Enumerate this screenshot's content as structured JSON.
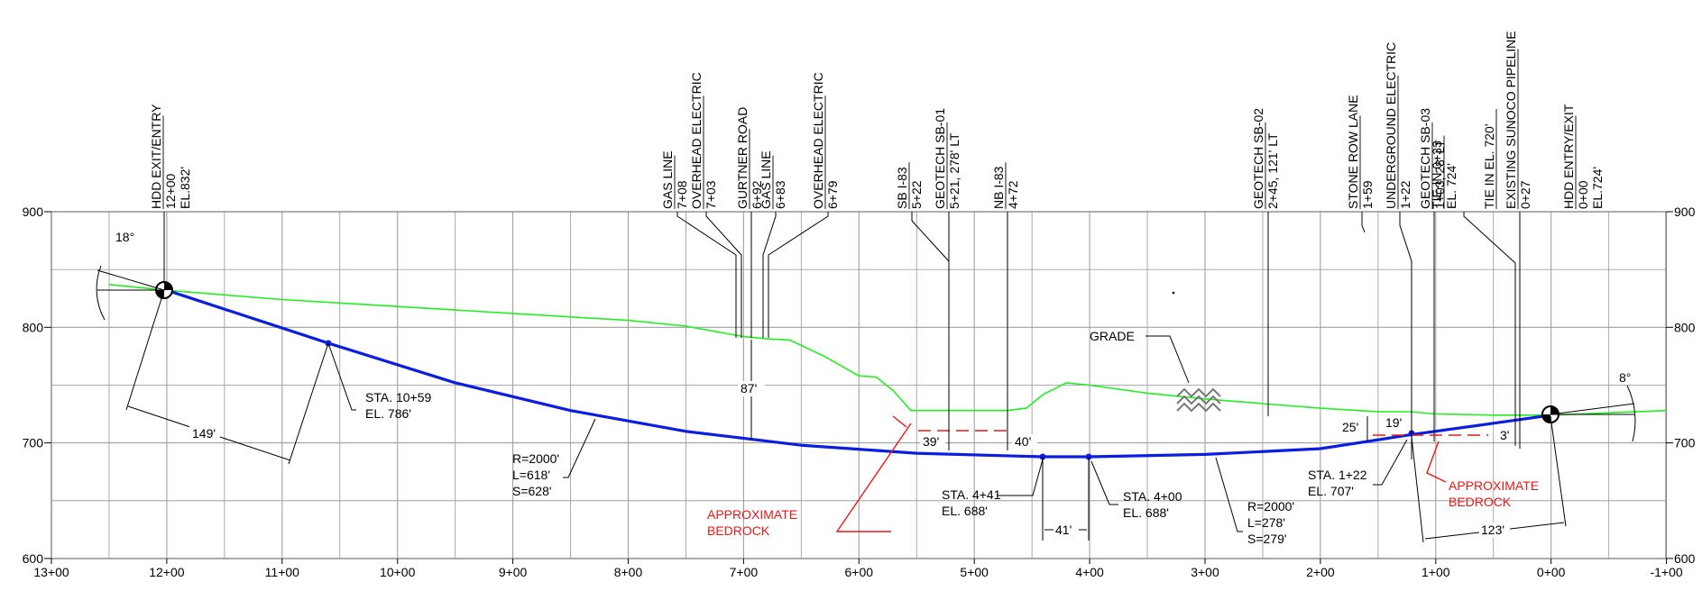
{
  "x_axis": {
    "tick_labels": [
      "13+00",
      "12+00",
      "11+00",
      "10+00",
      "9+00",
      "8+00",
      "7+00",
      "6+00",
      "5+00",
      "4+00",
      "3+00",
      "2+00",
      "1+00",
      "0+00",
      "-1+00"
    ]
  },
  "y_axis": {
    "tick_labels": [
      "900",
      "800",
      "700",
      "600"
    ]
  },
  "callouts": [
    {
      "lines": [
        "HDD EXIT/ENTRY",
        "12+00",
        "EL.832'"
      ]
    },
    {
      "lines": [
        "GAS LINE",
        "7+08"
      ]
    },
    {
      "lines": [
        "OVERHEAD ELECTRIC",
        "7+03"
      ]
    },
    {
      "lines": [
        "GURTNER ROAD",
        "6+92"
      ]
    },
    {
      "lines": [
        "GAS LINE",
        "6+83"
      ]
    },
    {
      "lines": [
        "OVERHEAD ELECTRIC",
        "6+79"
      ]
    },
    {
      "lines": [
        "SB I-83",
        "5+22"
      ]
    },
    {
      "lines": [
        "GEOTECH SB-01",
        "5+21, 278' LT"
      ]
    },
    {
      "lines": [
        "NB I-83",
        "4+72"
      ]
    },
    {
      "lines": [
        "GEOTECH SB-02",
        "2+45, 121' LT"
      ]
    },
    {
      "lines": [
        "STONE ROW LANE",
        "1+59"
      ]
    },
    {
      "lines": [
        "UNDERGROUND ELECTRIC",
        "1+22"
      ]
    },
    {
      "lines": [
        "GEOTECH SB-03",
        "1+03, 28' LT"
      ]
    },
    {
      "lines": [
        "TIE-IN 0+33",
        "EL. 724'"
      ]
    },
    {
      "lines": [
        "TIE IN EL. 720'"
      ]
    },
    {
      "lines": [
        "EXISTING SUNOCO PIPELINE",
        "0+27"
      ]
    },
    {
      "lines": [
        "HDD ENTRY/EXIT",
        "0+00",
        "EL.724'"
      ]
    }
  ],
  "annotations": {
    "angle_left": "18°",
    "angle_right": "8°",
    "dim_149": "149'",
    "sta_1059": [
      "STA. 10+59",
      "EL. 786'"
    ],
    "curve_left": [
      "R=2000'",
      "L=618'",
      "S=628'"
    ],
    "cover_87": "87'",
    "dim_39": "39'",
    "dim_40": "40'",
    "dim_41": "41'",
    "sta_441": [
      "STA. 4+41",
      "EL. 688'"
    ],
    "sta_400": [
      "STA. 4+00",
      "EL. 688'"
    ],
    "curve_right": [
      "R=2000'",
      "L=278'",
      "S=279'"
    ],
    "grade_label": "GRADE",
    "dim_25": "25'",
    "dim_19": "19'",
    "dim_3": "3'",
    "dim_123": "123'",
    "sta_122": [
      "STA. 1+22",
      "EL. 707'"
    ],
    "bedrock_left": [
      "APPROXIMATE",
      "BEDROCK"
    ],
    "bedrock_right": [
      "APPROXIMATE",
      "BEDROCK"
    ]
  },
  "colors": {
    "bore_path": "#0b1ee0",
    "ground": "#22ee22",
    "bedrock": "#e31a1a",
    "grid": "#a0a0a0"
  },
  "profile": {
    "ground": [
      [
        12.5,
        837
      ],
      [
        12.0,
        832
      ],
      [
        11.0,
        824
      ],
      [
        10.0,
        818
      ],
      [
        9.0,
        812
      ],
      [
        8.0,
        806
      ],
      [
        7.5,
        801
      ],
      [
        7.0,
        792
      ],
      [
        6.8,
        790
      ],
      [
        6.6,
        789
      ],
      [
        6.3,
        775
      ],
      [
        6.0,
        758
      ],
      [
        5.85,
        757
      ],
      [
        5.7,
        745
      ],
      [
        5.55,
        728
      ],
      [
        5.2,
        728
      ],
      [
        4.72,
        728
      ],
      [
        4.55,
        730
      ],
      [
        4.4,
        742
      ],
      [
        4.2,
        752
      ],
      [
        4.0,
        750
      ],
      [
        3.5,
        743
      ],
      [
        3.0,
        738
      ],
      [
        2.5,
        734
      ],
      [
        2.0,
        730
      ],
      [
        1.5,
        727
      ],
      [
        1.22,
        727
      ],
      [
        1.0,
        725
      ],
      [
        0.5,
        724
      ],
      [
        0.27,
        724
      ],
      [
        0.0,
        724
      ],
      [
        -0.5,
        726
      ],
      [
        -1.0,
        728
      ]
    ],
    "bore": [
      [
        12.0,
        832
      ],
      [
        10.59,
        786
      ],
      [
        9.5,
        752
      ],
      [
        8.5,
        728
      ],
      [
        7.5,
        710
      ],
      [
        6.5,
        698
      ],
      [
        5.5,
        691
      ],
      [
        4.41,
        688
      ],
      [
        4.0,
        688
      ],
      [
        3.0,
        690
      ],
      [
        2.0,
        695
      ],
      [
        1.22,
        707
      ],
      [
        0.5,
        717
      ],
      [
        0.0,
        724
      ]
    ]
  }
}
